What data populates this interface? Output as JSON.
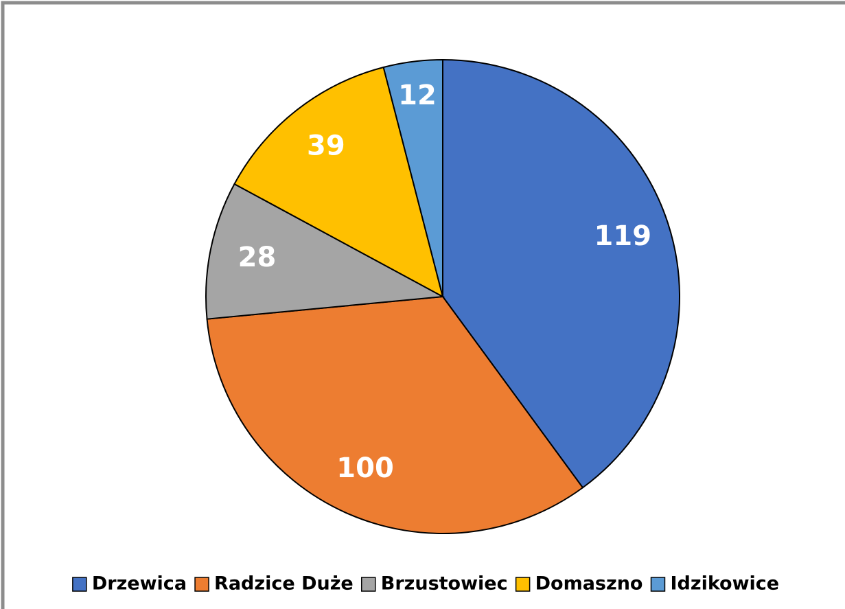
{
  "chart_data": {
    "type": "pie",
    "categories": [
      "Drzewica",
      "Radzice Duże",
      "Brzustowiec",
      "Domaszno",
      "Idzikowice"
    ],
    "values": [
      119,
      100,
      28,
      39,
      12
    ],
    "colors": [
      "#4472c4",
      "#ed7d31",
      "#a5a5a5",
      "#ffc000",
      "#5b9bd5"
    ],
    "legend": "bottom"
  }
}
